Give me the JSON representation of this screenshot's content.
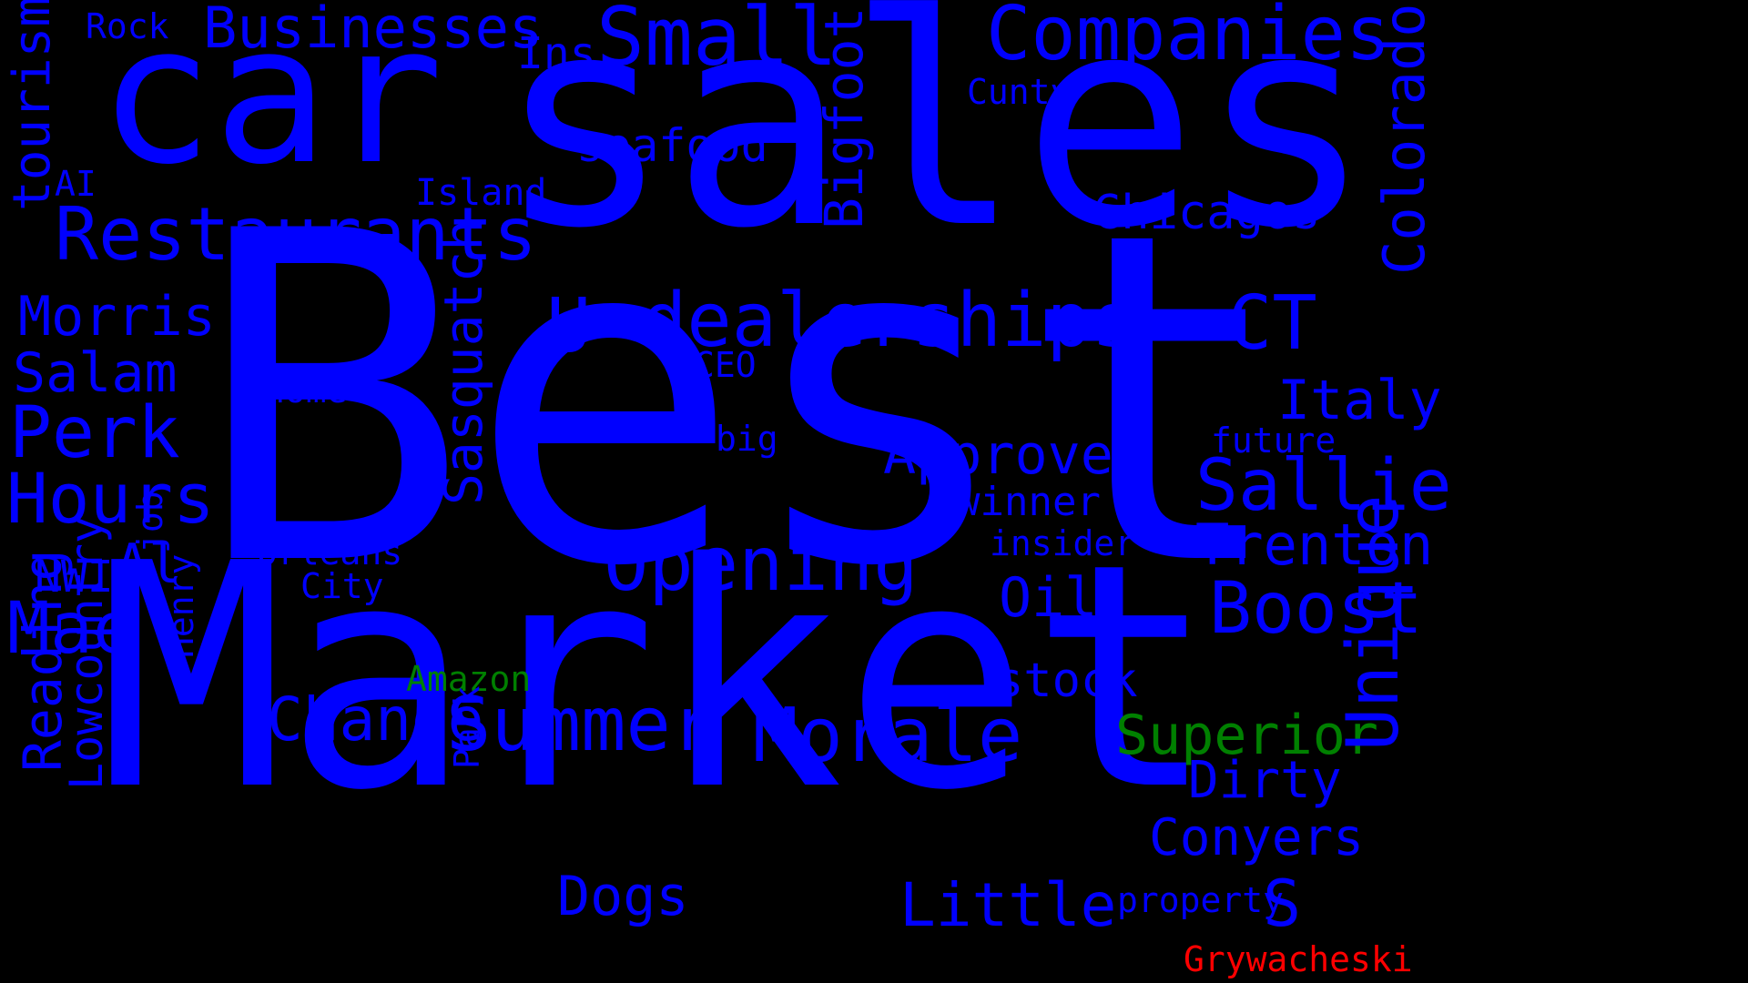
{
  "colors": {
    "background": "#000000",
    "primary": "#0000ff",
    "green": "#008000",
    "red": "#ff0000"
  },
  "words": {
    "best": "Best",
    "market": "Market",
    "sales": "sales",
    "car": "car",
    "restaurants": "Restaurants",
    "dealerships": "dealerships",
    "u": "U",
    "companies": "Companies",
    "businesses": "Businesses",
    "small": "Small",
    "bigfoot": "Bigfoot",
    "sasquatch": "Sasquatch",
    "opening": "Opening",
    "summer": "Summer",
    "morale": "Morale",
    "change": "Change",
    "approves": "Approves",
    "boost": "Boost",
    "sallie": "Sallie",
    "trenton": "Trenton",
    "superior": "Superior",
    "unique": "Unique",
    "colorado": "Colorado",
    "ct": "CT",
    "italy": "Italy",
    "chicagos": "Chicagos",
    "conyers": "Conyers",
    "dirty": "Dirty",
    "little": "Little",
    "dogs": "Dogs",
    "oil": "Oil",
    "stock": "stock",
    "s": "S",
    "perk": "Perk",
    "hours": "Hours",
    "mae": "Mae",
    "morris": "Morris",
    "salam": "Salam",
    "tourism": "tourism",
    "reading": "Reading",
    "lowcountry": "Lowcountry",
    "al": "Al",
    "nwi": "NWI",
    "ai": "AI",
    "rock": "Rock",
    "ins": "Ins",
    "seafood": "seafood",
    "island": "Island",
    "home": "home",
    "ceo": "CEO",
    "big": "big",
    "orleans": "Orleans",
    "city": "City",
    "job": "job",
    "henry": "Henry",
    "park": "Park",
    "amazon": "Amazon",
    "winner": "winner",
    "insider": "insider",
    "future": "future",
    "property": "property",
    "cunty": "Cunty",
    "grywacheski": "Grywacheski"
  }
}
